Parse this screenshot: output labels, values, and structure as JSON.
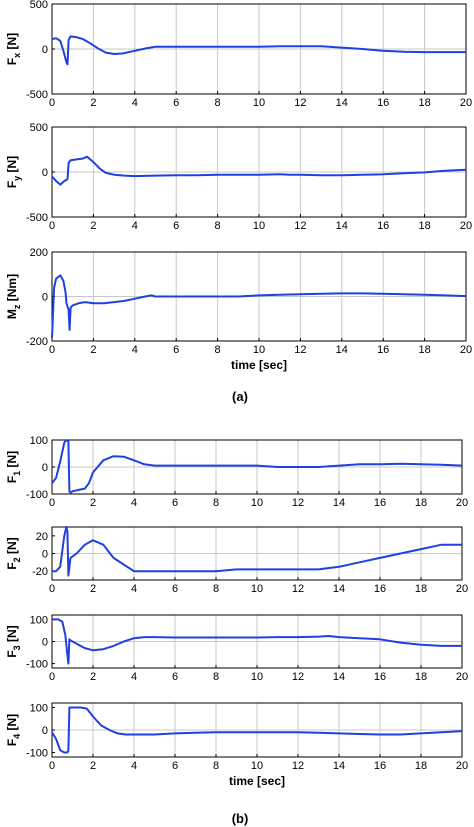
{
  "figure": {
    "caption_a": "(a)",
    "caption_b": "(b)"
  },
  "chart_data": [
    {
      "type": "line",
      "group": "a",
      "ylabel": {
        "main": "F",
        "sub": "x",
        "unit": " [N]"
      },
      "xlim": [
        0,
        20
      ],
      "ylim": [
        -500,
        500
      ],
      "xticks": [
        "0",
        "2",
        "4",
        "6",
        "8",
        "10",
        "12",
        "14",
        "16",
        "18",
        "20"
      ],
      "yticks": [
        "500",
        "0",
        "-500"
      ],
      "xlabel": "",
      "grid": "vertical",
      "series": [
        {
          "color": "#2040e0",
          "x": [
            0,
            0.2,
            0.4,
            0.55,
            0.7,
            0.75,
            0.8,
            0.9,
            1.2,
            1.5,
            1.8,
            2.2,
            2.6,
            3.0,
            3.4,
            3.8,
            4.2,
            4.6,
            5.0,
            6,
            7,
            8,
            9,
            10,
            11,
            12,
            13,
            14,
            15,
            16,
            17,
            18,
            19,
            20
          ],
          "y": [
            110,
            120,
            90,
            -20,
            -150,
            -170,
            100,
            140,
            130,
            110,
            70,
            10,
            -40,
            -55,
            -50,
            -30,
            -10,
            10,
            25,
            25,
            25,
            25,
            25,
            25,
            30,
            30,
            30,
            15,
            0,
            -20,
            -30,
            -35,
            -35,
            -35
          ]
        }
      ]
    },
    {
      "type": "line",
      "group": "a",
      "ylabel": {
        "main": "F",
        "sub": "y",
        "unit": " [N]"
      },
      "xlim": [
        0,
        20
      ],
      "ylim": [
        -500,
        500
      ],
      "xticks": [
        "0",
        "2",
        "4",
        "6",
        "8",
        "10",
        "12",
        "14",
        "16",
        "18",
        "20"
      ],
      "yticks": [
        "500",
        "0",
        "-500"
      ],
      "xlabel": "",
      "grid": "vertical",
      "series": [
        {
          "color": "#2040e0",
          "x": [
            0,
            0.2,
            0.4,
            0.6,
            0.75,
            0.8,
            0.9,
            1.2,
            1.5,
            1.7,
            2.0,
            2.3,
            2.6,
            3.0,
            3.5,
            4,
            5,
            6,
            7,
            8,
            9,
            10,
            11,
            11.5,
            12,
            13,
            14,
            15,
            16,
            17,
            18,
            19,
            20
          ],
          "y": [
            -50,
            -100,
            -140,
            -100,
            -80,
            100,
            130,
            140,
            150,
            170,
            110,
            40,
            -10,
            -30,
            -40,
            -45,
            -40,
            -35,
            -35,
            -30,
            -30,
            -30,
            -25,
            -30,
            -30,
            -35,
            -35,
            -30,
            -25,
            -15,
            -5,
            15,
            25
          ]
        }
      ]
    },
    {
      "type": "line",
      "group": "a",
      "ylabel": {
        "main": "M",
        "sub": "z",
        "unit": " [Nm]"
      },
      "xlim": [
        0,
        20
      ],
      "ylim": [
        -200,
        200
      ],
      "xticks": [
        "0",
        "2",
        "4",
        "6",
        "8",
        "10",
        "12",
        "14",
        "16",
        "18",
        "20"
      ],
      "yticks": [
        "200",
        "0",
        "-200"
      ],
      "xlabel": "time [sec]",
      "grid": "vertical",
      "series": [
        {
          "color": "#2040e0",
          "x": [
            0,
            0.1,
            0.2,
            0.4,
            0.55,
            0.65,
            0.7,
            0.8,
            0.85,
            0.9,
            1.0,
            1.3,
            1.6,
            2.0,
            2.5,
            3.0,
            3.5,
            4.0,
            4.5,
            4.8,
            5,
            6,
            7,
            8,
            9,
            10,
            11,
            12,
            13,
            14,
            15,
            16,
            17,
            18,
            19,
            20
          ],
          "y": [
            -185,
            40,
            80,
            95,
            70,
            20,
            -30,
            -60,
            -150,
            -50,
            -40,
            -30,
            -25,
            -30,
            -30,
            -25,
            -20,
            -10,
            0,
            5,
            0,
            0,
            0,
            0,
            0,
            5,
            8,
            10,
            12,
            14,
            14,
            12,
            10,
            8,
            5,
            2
          ]
        }
      ]
    },
    {
      "type": "line",
      "group": "b",
      "ylabel": {
        "main": "F",
        "sub": "1",
        "unit": " [N]"
      },
      "xlim": [
        0,
        20
      ],
      "ylim": [
        -100,
        100
      ],
      "xticks": [
        "0",
        "2",
        "4",
        "6",
        "8",
        "10",
        "12",
        "14",
        "16",
        "18",
        "20"
      ],
      "yticks": [
        "100",
        "0",
        "-100"
      ],
      "xlabel": "",
      "grid": "vertical",
      "series": [
        {
          "color": "#2040e0",
          "x": [
            0,
            0.2,
            0.4,
            0.6,
            0.7,
            0.8,
            0.85,
            0.9,
            1.0,
            1.3,
            1.6,
            1.8,
            2.0,
            2.5,
            3.0,
            3.5,
            4.0,
            4.5,
            5,
            6,
            7,
            8,
            9,
            10,
            11,
            12,
            13,
            14,
            15,
            16,
            17,
            18,
            19,
            20
          ],
          "y": [
            -60,
            -40,
            20,
            90,
            100,
            95,
            -90,
            -95,
            -90,
            -85,
            -80,
            -60,
            -20,
            25,
            40,
            38,
            25,
            10,
            5,
            5,
            5,
            5,
            5,
            5,
            0,
            0,
            0,
            5,
            10,
            10,
            12,
            10,
            8,
            5
          ]
        }
      ]
    },
    {
      "type": "line",
      "group": "b",
      "ylabel": {
        "main": "F",
        "sub": "2",
        "unit": " [N]"
      },
      "xlim": [
        0,
        20
      ],
      "ylim": [
        -30,
        30
      ],
      "xticks": [
        "0",
        "2",
        "4",
        "6",
        "8",
        "10",
        "12",
        "14",
        "16",
        "18",
        "20"
      ],
      "yticks": [
        "20",
        "0",
        "-20"
      ],
      "xlabel": "",
      "grid": "vertical",
      "series": [
        {
          "color": "#2040e0",
          "x": [
            0,
            0.2,
            0.4,
            0.6,
            0.7,
            0.75,
            0.8,
            0.9,
            1.2,
            1.6,
            2.0,
            2.5,
            3.0,
            4,
            5,
            6,
            7,
            8,
            9,
            10,
            11,
            12,
            13,
            14,
            15,
            16,
            17,
            18,
            19,
            20
          ],
          "y": [
            -20,
            -20,
            -15,
            20,
            30,
            25,
            -25,
            -5,
            0,
            10,
            15,
            10,
            -5,
            -20,
            -20,
            -20,
            -20,
            -20,
            -18,
            -18,
            -18,
            -18,
            -18,
            -15,
            -10,
            -5,
            0,
            5,
            10,
            10
          ]
        }
      ]
    },
    {
      "type": "line",
      "group": "b",
      "ylabel": {
        "main": "F",
        "sub": "3",
        "unit": " [N]"
      },
      "xlim": [
        0,
        20
      ],
      "ylim": [
        -120,
        120
      ],
      "xticks": [
        "0",
        "2",
        "4",
        "6",
        "8",
        "10",
        "12",
        "14",
        "16",
        "18",
        "20"
      ],
      "yticks": [
        "100",
        "0",
        "-100"
      ],
      "xlabel": "",
      "grid": "vertical",
      "series": [
        {
          "color": "#2040e0",
          "x": [
            0,
            0.3,
            0.5,
            0.65,
            0.75,
            0.8,
            0.85,
            0.9,
            1.2,
            1.6,
            2.0,
            2.5,
            3.0,
            3.5,
            4.0,
            4.5,
            5,
            6,
            7,
            8,
            9,
            10,
            11,
            12,
            13,
            13.5,
            14,
            15,
            16,
            17,
            18,
            19,
            20
          ],
          "y": [
            100,
            100,
            90,
            30,
            -60,
            -100,
            10,
            5,
            -10,
            -30,
            -40,
            -35,
            -20,
            0,
            15,
            20,
            20,
            18,
            18,
            18,
            18,
            18,
            20,
            20,
            22,
            25,
            20,
            15,
            10,
            -5,
            -15,
            -20,
            -20
          ]
        }
      ]
    },
    {
      "type": "line",
      "group": "b",
      "ylabel": {
        "main": "F",
        "sub": "4",
        "unit": " [N]"
      },
      "xlim": [
        0,
        20
      ],
      "ylim": [
        -120,
        120
      ],
      "xticks": [
        "0",
        "2",
        "4",
        "6",
        "8",
        "10",
        "12",
        "14",
        "16",
        "18",
        "20"
      ],
      "yticks": [
        "100",
        "0",
        "-100"
      ],
      "xlabel": "time [sec]",
      "grid": "vertical",
      "series": [
        {
          "color": "#2040e0",
          "x": [
            0,
            0.2,
            0.4,
            0.6,
            0.75,
            0.8,
            0.85,
            1.0,
            1.4,
            1.7,
            2.0,
            2.4,
            2.8,
            3.2,
            3.6,
            4.0,
            5,
            6,
            7,
            8,
            9,
            10,
            11,
            12,
            13,
            14,
            15,
            16,
            17,
            18,
            19,
            20
          ],
          "y": [
            -10,
            -40,
            -90,
            -100,
            -100,
            -90,
            100,
            100,
            100,
            95,
            60,
            20,
            0,
            -15,
            -20,
            -20,
            -20,
            -15,
            -12,
            -10,
            -10,
            -10,
            -10,
            -10,
            -12,
            -15,
            -18,
            -20,
            -20,
            -15,
            -10,
            -5
          ]
        }
      ]
    }
  ]
}
